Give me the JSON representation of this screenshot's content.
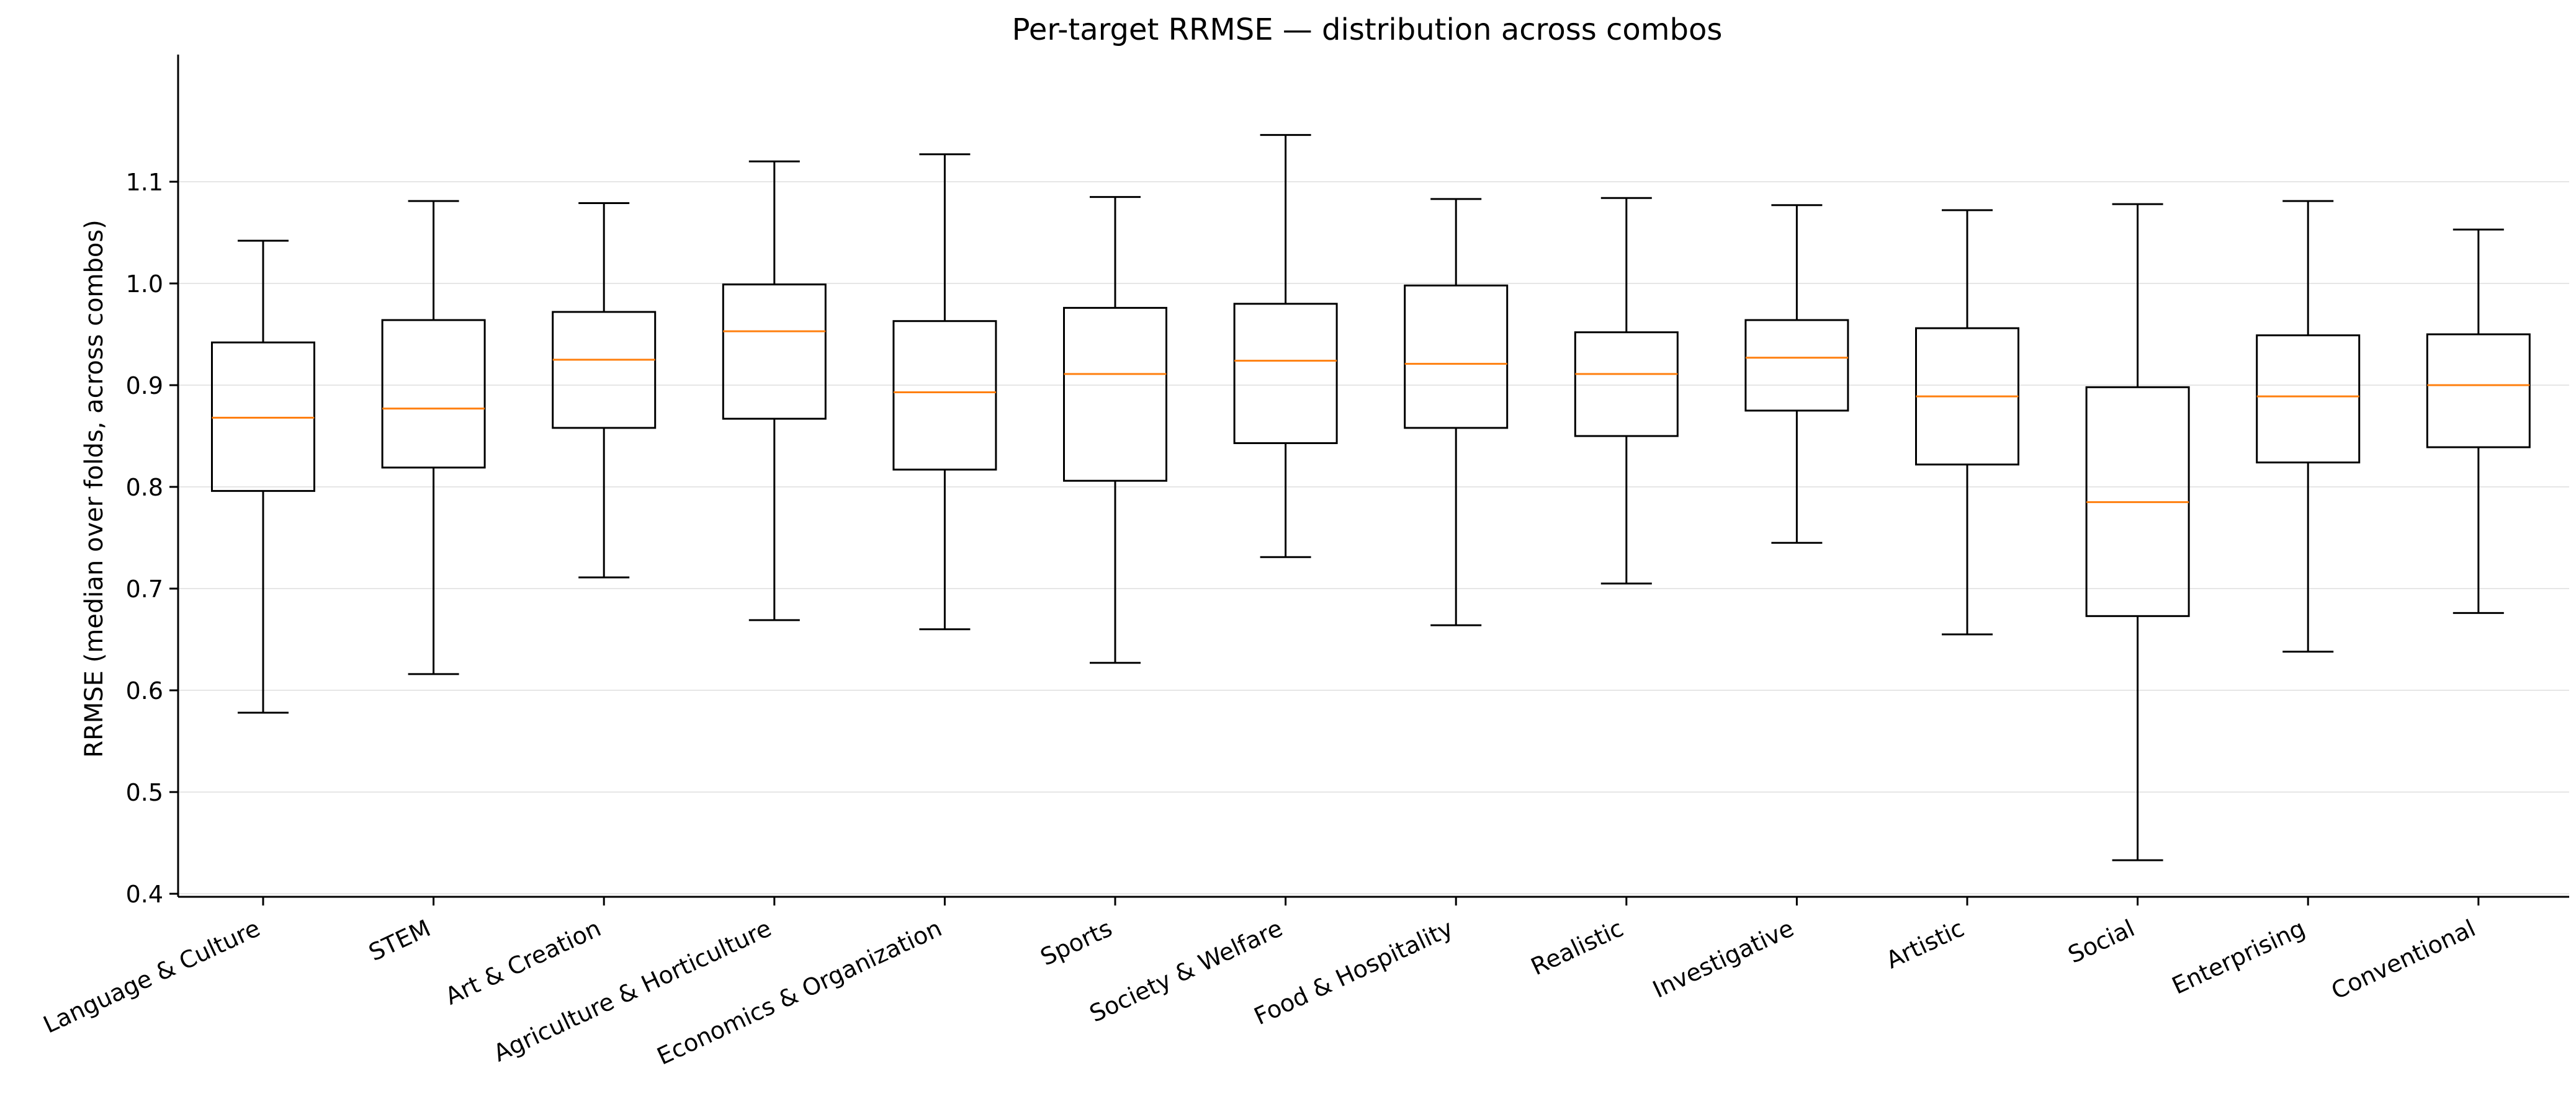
{
  "chart_data": {
    "type": "boxplot",
    "title": "Per-target RRMSE — distribution across combos",
    "xlabel": "",
    "ylabel": "RRMSE (median over folds, across combos)",
    "ylim": [
      0.397,
      1.225
    ],
    "yticks": [
      0.4,
      0.5,
      0.6,
      0.7,
      0.8,
      0.9,
      1.0,
      1.1
    ],
    "ytick_labels": [
      "0.4",
      "0.5",
      "0.6",
      "0.7",
      "0.8",
      "0.9",
      "1.0",
      "1.1"
    ],
    "grid": "horizontal",
    "categories": [
      "Language & Culture",
      "STEM",
      "Art & Creation",
      "Agriculture & Horticulture",
      "Economics & Organization",
      "Sports",
      "Society & Welfare",
      "Food & Hospitality",
      "Realistic",
      "Investigative",
      "Artistic",
      "Social",
      "Enterprising",
      "Conventional"
    ],
    "boxes": [
      {
        "whislo": 0.578,
        "q1": 0.796,
        "med": 0.868,
        "q3": 0.942,
        "whishi": 1.042
      },
      {
        "whislo": 0.616,
        "q1": 0.819,
        "med": 0.877,
        "q3": 0.964,
        "whishi": 1.081
      },
      {
        "whislo": 0.711,
        "q1": 0.858,
        "med": 0.925,
        "q3": 0.972,
        "whishi": 1.079
      },
      {
        "whislo": 0.669,
        "q1": 0.867,
        "med": 0.953,
        "q3": 0.999,
        "whishi": 1.12
      },
      {
        "whislo": 0.66,
        "q1": 0.817,
        "med": 0.893,
        "q3": 0.963,
        "whishi": 1.127
      },
      {
        "whislo": 0.627,
        "q1": 0.806,
        "med": 0.911,
        "q3": 0.976,
        "whishi": 1.085
      },
      {
        "whislo": 0.731,
        "q1": 0.843,
        "med": 0.924,
        "q3": 0.98,
        "whishi": 1.146
      },
      {
        "whislo": 0.664,
        "q1": 0.858,
        "med": 0.921,
        "q3": 0.998,
        "whishi": 1.083
      },
      {
        "whislo": 0.705,
        "q1": 0.85,
        "med": 0.911,
        "q3": 0.952,
        "whishi": 1.084
      },
      {
        "whislo": 0.745,
        "q1": 0.875,
        "med": 0.927,
        "q3": 0.964,
        "whishi": 1.077
      },
      {
        "whislo": 0.655,
        "q1": 0.822,
        "med": 0.889,
        "q3": 0.956,
        "whishi": 1.072
      },
      {
        "whislo": 0.433,
        "q1": 0.673,
        "med": 0.785,
        "q3": 0.898,
        "whishi": 1.078
      },
      {
        "whislo": 0.638,
        "q1": 0.824,
        "med": 0.889,
        "q3": 0.949,
        "whishi": 1.081
      },
      {
        "whislo": 0.676,
        "q1": 0.839,
        "med": 0.9,
        "q3": 0.95,
        "whishi": 1.053
      }
    ],
    "colors": {
      "box": "#000000",
      "median": "#ff7f0e",
      "grid": "#e6e6e6",
      "axis": "#000000"
    }
  }
}
